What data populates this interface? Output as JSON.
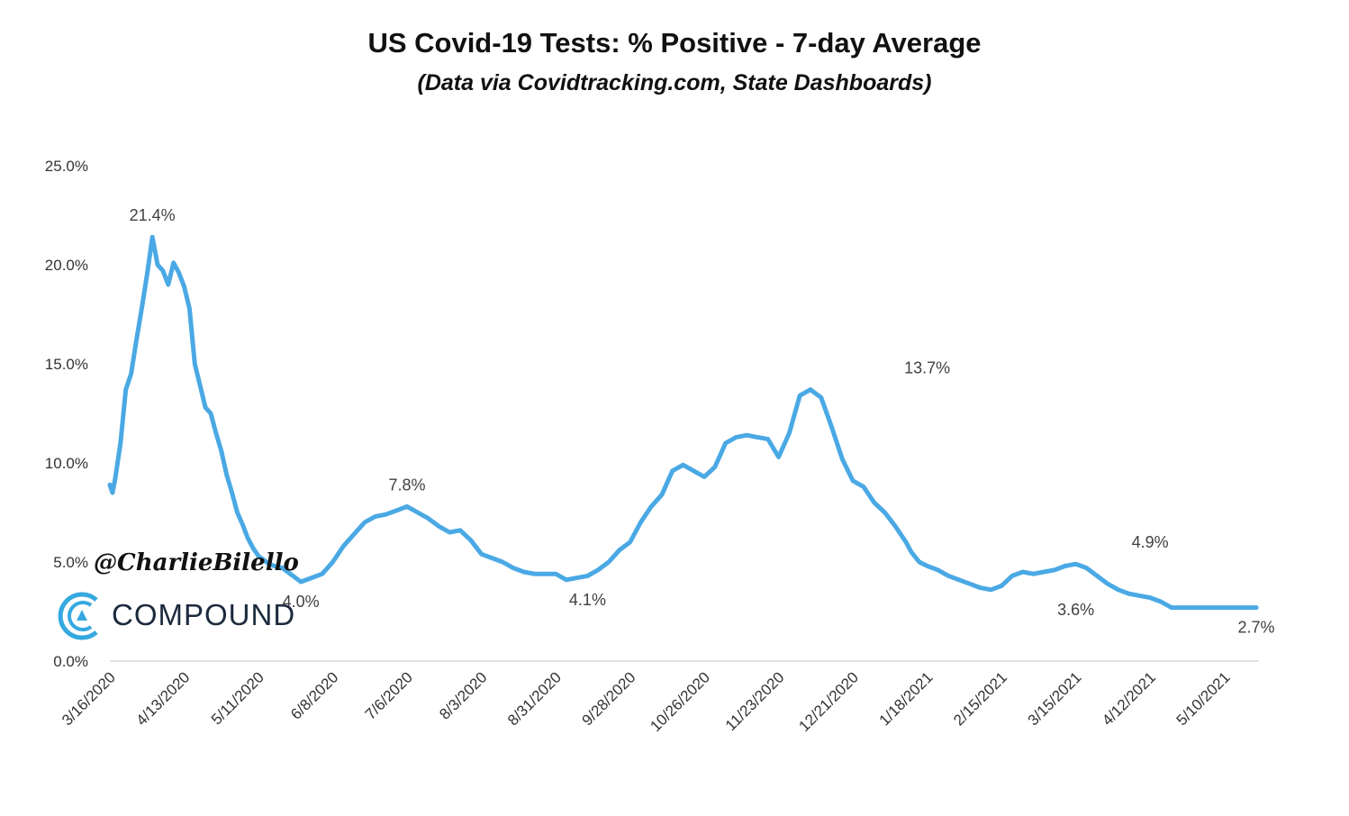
{
  "chart_data": {
    "type": "line",
    "title": "US Covid-19 Tests: % Positive - 7-day Average",
    "subtitle": "(Data via Covidtracking.com, State Dashboards)",
    "xlabel": "",
    "ylabel": "",
    "ylim": [
      0,
      25
    ],
    "yticks": [
      "0.0%",
      "5.0%",
      "10.0%",
      "15.0%",
      "20.0%",
      "25.0%"
    ],
    "ytick_values": [
      0,
      5,
      10,
      15,
      20,
      25
    ],
    "xticks": [
      "3/16/2020",
      "4/13/2020",
      "5/11/2020",
      "6/8/2020",
      "7/6/2020",
      "8/3/2020",
      "8/31/2020",
      "9/28/2020",
      "10/26/2020",
      "11/23/2020",
      "12/21/2020",
      "1/18/2021",
      "2/15/2021",
      "3/15/2021",
      "4/12/2021",
      "5/10/2021"
    ],
    "x_range_days": [
      0,
      433
    ],
    "grid": false,
    "legend": "none",
    "line_color": "#4aa9e4",
    "series": [
      {
        "name": "% Positive - 7-day Average",
        "x": [
          0,
          1,
          2,
          4,
          6,
          8,
          10,
          12,
          14,
          16,
          18,
          20,
          22,
          24,
          26,
          28,
          30,
          32,
          34,
          36,
          38,
          40,
          42,
          44,
          46,
          48,
          50,
          52,
          54,
          56,
          58,
          60,
          62,
          65,
          68,
          72,
          76,
          80,
          84,
          88,
          92,
          96,
          100,
          104,
          108,
          112,
          116,
          120,
          124,
          128,
          132,
          136,
          140,
          144,
          148,
          152,
          156,
          160,
          164,
          168,
          172,
          176,
          180,
          184,
          188,
          192,
          196,
          200,
          204,
          208,
          212,
          216,
          220,
          224,
          228,
          232,
          236,
          240,
          244,
          248,
          252,
          256,
          260,
          264,
          268,
          272,
          276,
          280,
          284,
          288,
          292,
          296,
          300,
          302,
          305,
          308,
          312,
          316,
          320,
          324,
          328,
          332,
          336,
          340,
          344,
          348,
          352,
          356,
          360,
          364,
          368,
          372,
          376,
          380,
          384,
          388,
          392,
          396,
          400,
          404,
          408,
          412,
          416,
          420,
          424,
          428,
          432
        ],
        "values": [
          8.9,
          8.5,
          9.2,
          11.0,
          13.7,
          14.5,
          16.2,
          17.8,
          19.5,
          21.4,
          20.0,
          19.7,
          19.0,
          20.1,
          19.6,
          18.9,
          17.8,
          15.0,
          13.9,
          12.8,
          12.5,
          11.5,
          10.6,
          9.4,
          8.5,
          7.5,
          6.9,
          6.2,
          5.7,
          5.3,
          5.1,
          4.9,
          4.8,
          4.7,
          4.4,
          4.0,
          4.2,
          4.4,
          5.0,
          5.8,
          6.4,
          7.0,
          7.3,
          7.4,
          7.6,
          7.8,
          7.5,
          7.2,
          6.8,
          6.5,
          6.6,
          6.1,
          5.4,
          5.2,
          5.0,
          4.7,
          4.5,
          4.4,
          4.4,
          4.4,
          4.1,
          4.2,
          4.3,
          4.6,
          5.0,
          5.6,
          6.0,
          7.0,
          7.8,
          8.4,
          9.6,
          9.9,
          9.6,
          9.3,
          9.8,
          11.0,
          11.3,
          11.4,
          11.3,
          11.2,
          10.3,
          11.5,
          13.4,
          13.7,
          13.3,
          11.8,
          10.2,
          9.1,
          8.8,
          8.0,
          7.5,
          6.8,
          6.0,
          5.5,
          5.0,
          4.8,
          4.6,
          4.3,
          4.1,
          3.9,
          3.7,
          3.6,
          3.8,
          4.3,
          4.5,
          4.4,
          4.5,
          4.6,
          4.8,
          4.9,
          4.7,
          4.3,
          3.9,
          3.6,
          3.4,
          3.3,
          3.2,
          3.0,
          2.7,
          2.7,
          2.7,
          2.7,
          2.7,
          2.7,
          2.7,
          2.7,
          2.7
        ],
        "note": "values from x=392 onward flatten out at 2.7 as the line ends near 5/24/2021"
      }
    ],
    "annotations": [
      {
        "label": "21.4%",
        "x": 16,
        "y": 21.4,
        "position": "above"
      },
      {
        "label": "4.0%",
        "x": 72,
        "y": 4.0,
        "position": "below"
      },
      {
        "label": "7.8%",
        "x": 112,
        "y": 7.8,
        "position": "above"
      },
      {
        "label": "4.1%",
        "x": 180,
        "y": 4.1,
        "position": "below"
      },
      {
        "label": "13.7%",
        "x": 308,
        "y": 13.7,
        "position": "above"
      },
      {
        "label": "3.6%",
        "x": 364,
        "y": 3.6,
        "position": "below"
      },
      {
        "label": "4.9%",
        "x": 392,
        "y": 4.9,
        "position": "above"
      },
      {
        "label": "2.7%",
        "x": 432,
        "y": 2.7,
        "position": "below"
      }
    ]
  },
  "watermark": {
    "handle": "@CharlieBilello",
    "brand": "COMPOUND",
    "brand_color": "#35a9e0"
  }
}
